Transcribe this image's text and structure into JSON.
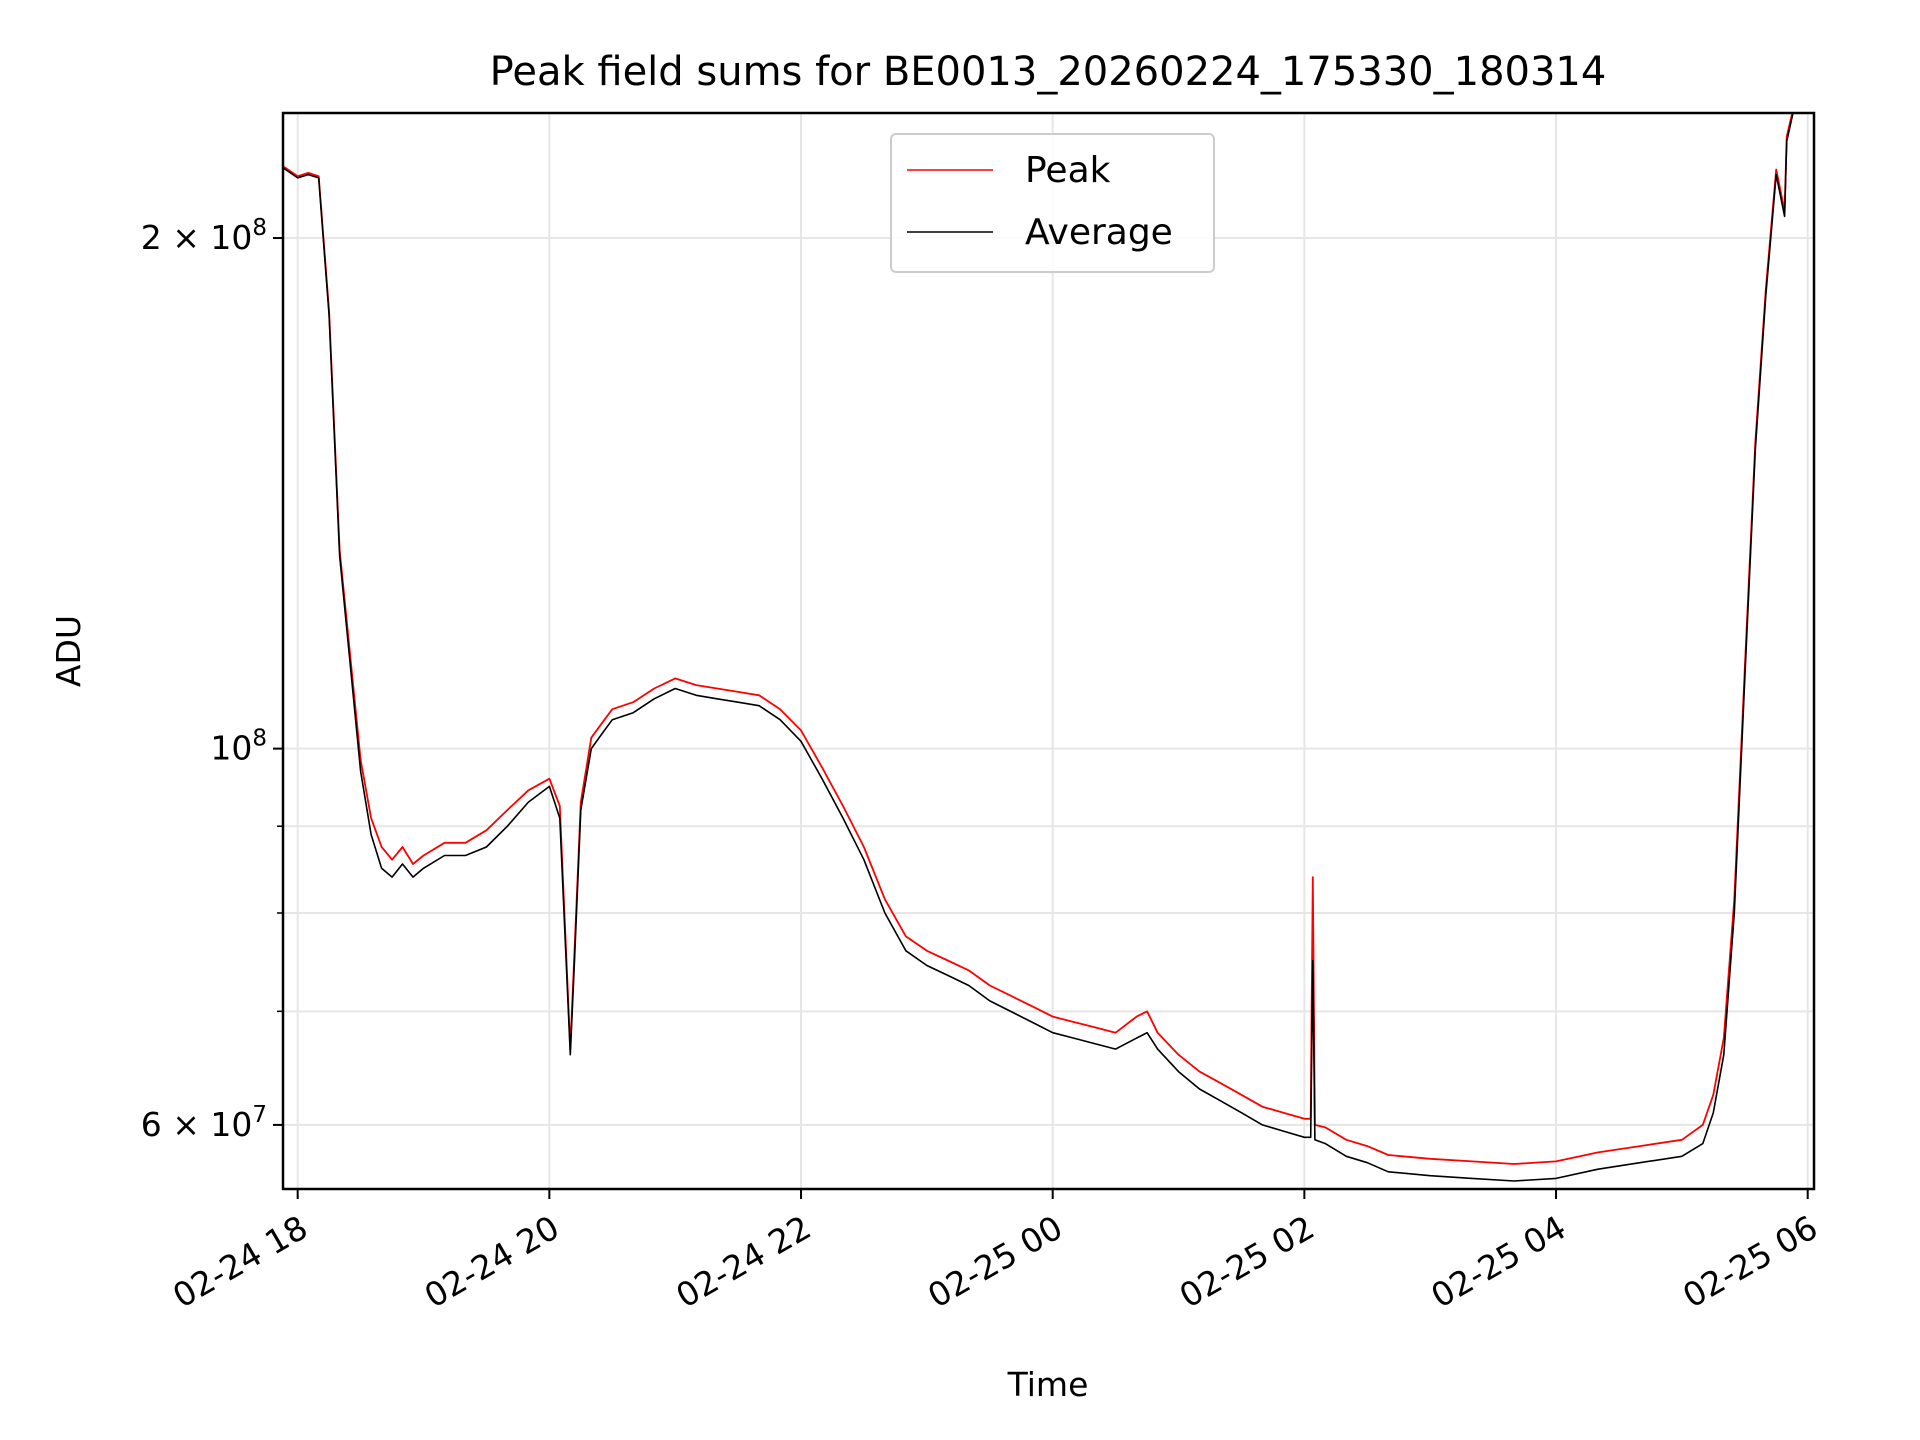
{
  "chart_data": {
    "type": "line",
    "title": "Peak field sums for BE0013_20260224_175330_180314",
    "xlabel": "Time",
    "ylabel": "ADU",
    "yscale": "log",
    "xlim": [
      "2026-02-24 17:53",
      "2026-02-25 06:03"
    ],
    "ylim": [
      55000000,
      237000000
    ],
    "grid": true,
    "legend": {
      "position": "top-center",
      "entries": [
        "Peak",
        "Average"
      ]
    },
    "x_ticks": [
      "02-24 18",
      "02-24 20",
      "02-24 22",
      "02-25 00",
      "02-25 02",
      "02-25 04",
      "02-25 06"
    ],
    "x_tick_times": [
      "2026-02-24 18:00",
      "2026-02-24 20:00",
      "2026-02-24 22:00",
      "2026-02-25 00:00",
      "2026-02-25 02:00",
      "2026-02-25 04:00",
      "2026-02-25 06:00"
    ],
    "y_major_ticks": [
      {
        "value": 60000000,
        "mantissa": "6",
        "exponent": "7"
      },
      {
        "value": 100000000,
        "mantissa": "",
        "exponent": "8"
      },
      {
        "value": 200000000,
        "mantissa": "2",
        "exponent": "8"
      }
    ],
    "y_minor_ticks": [
      70000000,
      80000000,
      90000000
    ],
    "series": [
      {
        "name": "Average",
        "color": "#000000",
        "x": [
          "2026-02-24 17:53",
          "2026-02-24 18:00",
          "2026-02-24 18:05",
          "2026-02-24 18:10",
          "2026-02-24 18:15",
          "2026-02-24 18:20",
          "2026-02-24 18:30",
          "2026-02-24 18:35",
          "2026-02-24 18:40",
          "2026-02-24 18:45",
          "2026-02-24 18:50",
          "2026-02-24 18:55",
          "2026-02-24 19:00",
          "2026-02-24 19:10",
          "2026-02-24 19:20",
          "2026-02-24 19:30",
          "2026-02-24 19:40",
          "2026-02-24 19:50",
          "2026-02-24 20:00",
          "2026-02-24 20:05",
          "2026-02-24 20:10",
          "2026-02-24 20:12",
          "2026-02-24 20:15",
          "2026-02-24 20:20",
          "2026-02-24 20:25",
          "2026-02-24 20:30",
          "2026-02-24 20:40",
          "2026-02-24 20:50",
          "2026-02-24 21:00",
          "2026-02-24 21:10",
          "2026-02-24 21:20",
          "2026-02-24 21:30",
          "2026-02-24 21:40",
          "2026-02-24 21:50",
          "2026-02-24 22:00",
          "2026-02-24 22:10",
          "2026-02-24 22:20",
          "2026-02-24 22:30",
          "2026-02-24 22:40",
          "2026-02-24 22:50",
          "2026-02-24 23:00",
          "2026-02-24 23:10",
          "2026-02-24 23:20",
          "2026-02-24 23:30",
          "2026-02-24 23:40",
          "2026-02-24 23:50",
          "2026-02-25 00:00",
          "2026-02-25 00:10",
          "2026-02-25 00:20",
          "2026-02-25 00:30",
          "2026-02-25 00:40",
          "2026-02-25 00:45",
          "2026-02-25 00:50",
          "2026-02-25 01:00",
          "2026-02-25 01:10",
          "2026-02-25 01:20",
          "2026-02-25 01:30",
          "2026-02-25 01:40",
          "2026-02-25 01:50",
          "2026-02-25 02:00",
          "2026-02-25 02:03",
          "2026-02-25 02:04",
          "2026-02-25 02:05",
          "2026-02-25 02:10",
          "2026-02-25 02:20",
          "2026-02-25 02:30",
          "2026-02-25 02:40",
          "2026-02-25 03:00",
          "2026-02-25 03:20",
          "2026-02-25 03:40",
          "2026-02-25 04:00",
          "2026-02-25 04:20",
          "2026-02-25 04:40",
          "2026-02-25 05:00",
          "2026-02-25 05:10",
          "2026-02-25 05:15",
          "2026-02-25 05:20",
          "2026-02-25 05:25",
          "2026-02-25 05:30",
          "2026-02-25 05:35",
          "2026-02-25 05:40",
          "2026-02-25 05:45",
          "2026-02-25 05:49",
          "2026-02-25 05:50",
          "2026-02-25 05:53",
          "2026-02-25 05:55"
        ],
        "y": [
          220000000,
          217000000,
          218000000,
          217000000,
          180000000,
          130000000,
          97000000,
          89000000,
          85000000,
          84000000,
          85500000,
          84000000,
          85000000,
          86500000,
          86500000,
          87500000,
          90000000,
          93000000,
          95000000,
          91000000,
          66000000,
          75000000,
          92000000,
          100000000,
          102000000,
          104000000,
          105000000,
          107000000,
          108500000,
          107500000,
          107000000,
          106500000,
          106000000,
          104000000,
          101000000,
          96000000,
          91000000,
          86000000,
          80000000,
          76000000,
          74500000,
          73500000,
          72500000,
          71000000,
          70000000,
          69000000,
          68000000,
          67500000,
          67000000,
          66500000,
          67500000,
          68000000,
          66500000,
          64500000,
          63000000,
          62000000,
          61000000,
          60000000,
          59500000,
          59000000,
          59000000,
          75000000,
          58800000,
          58500000,
          57500000,
          57000000,
          56300000,
          56000000,
          55800000,
          55600000,
          55800000,
          56500000,
          57000000,
          57500000,
          58500000,
          61000000,
          66000000,
          80000000,
          110000000,
          150000000,
          185000000,
          218000000,
          206000000,
          228000000,
          237000000,
          240000000
        ]
      },
      {
        "name": "Peak",
        "color": "#ff0000",
        "x": [
          "2026-02-24 17:53",
          "2026-02-24 18:00",
          "2026-02-24 18:05",
          "2026-02-24 18:10",
          "2026-02-24 18:15",
          "2026-02-24 18:20",
          "2026-02-24 18:30",
          "2026-02-24 18:35",
          "2026-02-24 18:40",
          "2026-02-24 18:45",
          "2026-02-24 18:50",
          "2026-02-24 18:55",
          "2026-02-24 19:00",
          "2026-02-24 19:10",
          "2026-02-24 19:20",
          "2026-02-24 19:30",
          "2026-02-24 19:40",
          "2026-02-24 19:50",
          "2026-02-24 20:00",
          "2026-02-24 20:05",
          "2026-02-24 20:10",
          "2026-02-24 20:12",
          "2026-02-24 20:15",
          "2026-02-24 20:20",
          "2026-02-24 20:25",
          "2026-02-24 20:30",
          "2026-02-24 20:40",
          "2026-02-24 20:50",
          "2026-02-24 21:00",
          "2026-02-24 21:10",
          "2026-02-24 21:20",
          "2026-02-24 21:30",
          "2026-02-24 21:40",
          "2026-02-24 21:50",
          "2026-02-24 22:00",
          "2026-02-24 22:10",
          "2026-02-24 22:20",
          "2026-02-24 22:30",
          "2026-02-24 22:40",
          "2026-02-24 22:50",
          "2026-02-24 23:00",
          "2026-02-24 23:10",
          "2026-02-24 23:20",
          "2026-02-24 23:30",
          "2026-02-24 23:40",
          "2026-02-24 23:50",
          "2026-02-25 00:00",
          "2026-02-25 00:10",
          "2026-02-25 00:20",
          "2026-02-25 00:30",
          "2026-02-25 00:40",
          "2026-02-25 00:45",
          "2026-02-25 00:50",
          "2026-02-25 01:00",
          "2026-02-25 01:10",
          "2026-02-25 01:20",
          "2026-02-25 01:30",
          "2026-02-25 01:40",
          "2026-02-25 01:50",
          "2026-02-25 02:00",
          "2026-02-25 02:03",
          "2026-02-25 02:04",
          "2026-02-25 02:05",
          "2026-02-25 02:10",
          "2026-02-25 02:20",
          "2026-02-25 02:30",
          "2026-02-25 02:40",
          "2026-02-25 03:00",
          "2026-02-25 03:20",
          "2026-02-25 03:40",
          "2026-02-25 04:00",
          "2026-02-25 04:20",
          "2026-02-25 04:40",
          "2026-02-25 05:00",
          "2026-02-25 05:10",
          "2026-02-25 05:15",
          "2026-02-25 05:20",
          "2026-02-25 05:25",
          "2026-02-25 05:30",
          "2026-02-25 05:35",
          "2026-02-25 05:40",
          "2026-02-25 05:45",
          "2026-02-25 05:49",
          "2026-02-25 05:50",
          "2026-02-25 05:53",
          "2026-02-25 05:55"
        ],
        "y": [
          220500000,
          217500000,
          218500000,
          217500000,
          181000000,
          131000000,
          98500000,
          91000000,
          87500000,
          86000000,
          87500000,
          85500000,
          86500000,
          88000000,
          88000000,
          89500000,
          92000000,
          94500000,
          96000000,
          92500000,
          66500000,
          76000000,
          93000000,
          101500000,
          103500000,
          105500000,
          106500000,
          108500000,
          110000000,
          109000000,
          108500000,
          108000000,
          107500000,
          105500000,
          102500000,
          97500000,
          92500000,
          87500000,
          81500000,
          77500000,
          76000000,
          75000000,
          74000000,
          72500000,
          71500000,
          70500000,
          69500000,
          69000000,
          68500000,
          68000000,
          69500000,
          70000000,
          68000000,
          66000000,
          64500000,
          63500000,
          62500000,
          61500000,
          61000000,
          60500000,
          60500000,
          84000000,
          60000000,
          59800000,
          58800000,
          58300000,
          57600000,
          57300000,
          57100000,
          56900000,
          57100000,
          57800000,
          58300000,
          58800000,
          60000000,
          62500000,
          67500000,
          81500000,
          111500000,
          151500000,
          186500000,
          219500000,
          207500000,
          229500000,
          238000000,
          241000000
        ]
      }
    ]
  }
}
